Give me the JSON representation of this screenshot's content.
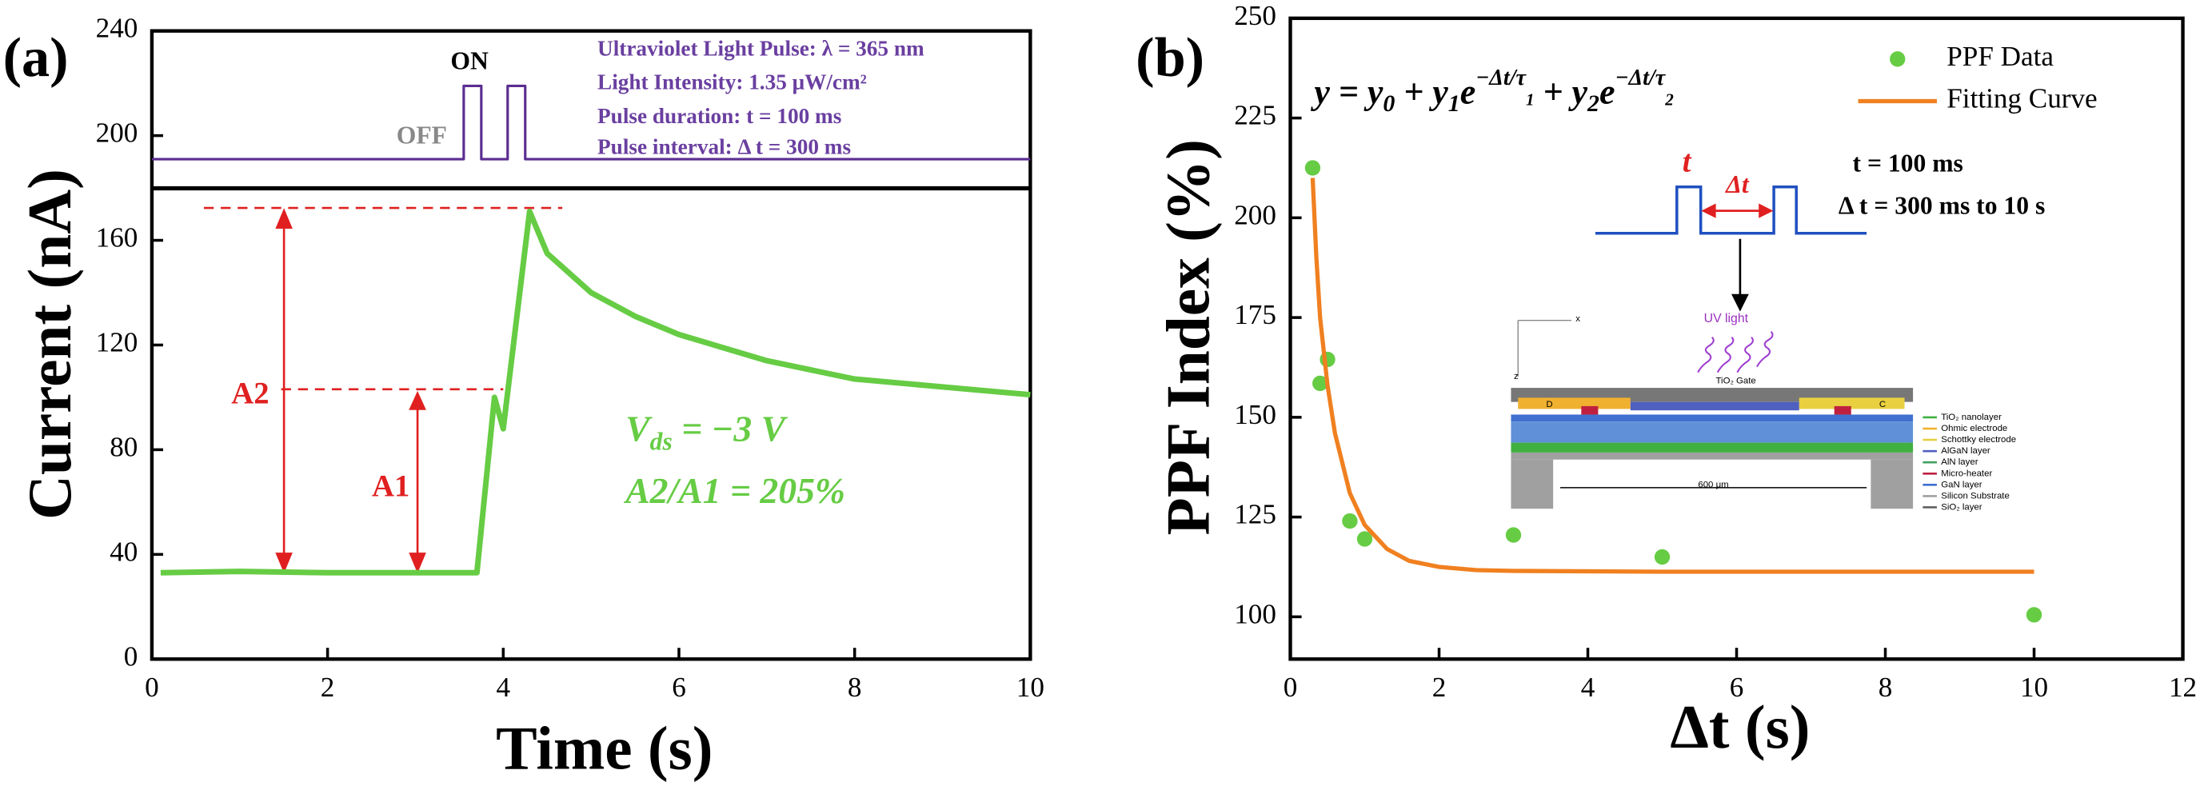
{
  "chart_data": [
    {
      "type": "line",
      "panel_label": "(a)",
      "xlabel": "Time  (s)",
      "ylabel": "Current  (nA)",
      "xlim": [
        0,
        10
      ],
      "ylim": [
        0,
        240
      ],
      "xticks": [
        0,
        2,
        4,
        6,
        8,
        10
      ],
      "yticks": [
        0,
        40,
        80,
        120,
        160,
        200,
        240
      ],
      "x": [
        0.1,
        1,
        2,
        3,
        3.7,
        3.9,
        4.0,
        4.3,
        4.5,
        5,
        5.5,
        6,
        7,
        8,
        9,
        10
      ],
      "series": [
        {
          "color": "#66cc44",
          "values": [
            33,
            33.5,
            33,
            33,
            33,
            100,
            88,
            171,
            155,
            140,
            131,
            124,
            114,
            107,
            104,
            101
          ]
        }
      ],
      "pulse": {
        "color": "#5b2d90",
        "x": [
          0,
          3.55,
          3.55,
          3.75,
          3.75,
          4.05,
          4.05,
          4.25,
          4.25,
          10
        ],
        "values": [
          191,
          191,
          219,
          219,
          191,
          191,
          219,
          219,
          191,
          191
        ]
      },
      "pulse_on": "ON",
      "pulse_off": "OFF",
      "notes": [
        "Ultraviolet Light Pulse:  λ = 365 nm",
        "Light Intensity: 1.35 μW/cm²",
        "Pulse duration: t = 100 ms",
        "Pulse interval: Δ t = 300 ms"
      ],
      "a1": "A1",
      "a2": "A2",
      "vds": {
        "main": "V",
        "sub": "ds",
        "rest": " = −3 V"
      },
      "ratio": "A2/A1 = 205%"
    },
    {
      "type": "scatter",
      "panel_label": "(b)",
      "xlabel": "Δt (s)",
      "ylabel": "PPF Index (%)",
      "xlim": [
        0,
        12
      ],
      "ylim": [
        89.4,
        250
      ],
      "xticks": [
        0,
        2,
        4,
        6,
        8,
        10,
        12
      ],
      "yticks": [
        100,
        125,
        150,
        175,
        200,
        225,
        250
      ],
      "series": [
        {
          "name": "PPF Data",
          "type": "scatter",
          "color": "#66cc44",
          "x": [
            0.3,
            0.4,
            0.5,
            0.8,
            1,
            3,
            5,
            10
          ],
          "values": [
            212.5,
            158.5,
            164.5,
            124,
            119.5,
            120.5,
            115,
            100.5
          ]
        },
        {
          "name": "Fitting  Curve",
          "type": "line",
          "color": "#f08020",
          "x": [
            0.3,
            0.35,
            0.4,
            0.5,
            0.6,
            0.8,
            1,
            1.3,
            1.6,
            2,
            2.5,
            3,
            5,
            10
          ],
          "values": [
            210,
            190,
            175,
            158,
            146,
            131,
            123,
            117,
            114,
            112.5,
            111.7,
            111.5,
            111.3,
            111.3
          ]
        }
      ],
      "formula": [
        {
          "t": "y = y",
          "s": "n"
        },
        {
          "t": "0",
          "s": "sub"
        },
        {
          "t": " + y",
          "s": "n"
        },
        {
          "t": "1",
          "s": "sub"
        },
        {
          "t": "e",
          "s": "n"
        },
        {
          "t": "−Δt/τ",
          "s": "sup"
        },
        {
          "t": "1",
          "s": "supsub"
        },
        {
          "t": " + y",
          "s": "n"
        },
        {
          "t": "2",
          "s": "sub"
        },
        {
          "t": "e",
          "s": "n"
        },
        {
          "t": "−Δt/τ",
          "s": "sup"
        },
        {
          "t": "2",
          "s": "supsub"
        }
      ],
      "inset": {
        "t": "t",
        "dt": "Δt",
        "t_value": "t = 100 ms",
        "dt_value": "Δ t = 300 ms to 10 s",
        "uv": "UV light",
        "gate": "TiO₂ Gate",
        "d": "D",
        "c": "C",
        "width": "600 μm",
        "axis_x": "x",
        "axis_z": "z",
        "layers": [
          "TiO₂ nanolayer",
          "Ohmic electrode",
          "Schottky electrode",
          "AlGaN layer",
          "AlN layer",
          "Micro-heater",
          "GaN layer",
          "Silicon Substrate",
          "SiO₂ layer"
        ]
      }
    }
  ]
}
